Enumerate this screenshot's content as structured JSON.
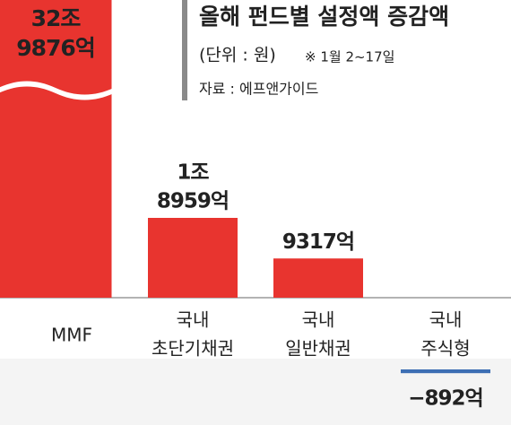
{
  "chart_data": {
    "type": "bar",
    "title": "올해 펀드별 설정액 증감액",
    "subtitle": "(단위 : 원)",
    "note": "※ 1월 2~17일",
    "source": "자료 : 에프앤가이드",
    "categories": [
      [
        "MMF"
      ],
      [
        "국내",
        "초단기채권"
      ],
      [
        "국내",
        "일반채권"
      ],
      [
        "국내",
        "주식형"
      ]
    ],
    "values": [
      329876,
      18959,
      9317,
      -892
    ],
    "value_labels": [
      [
        "32조",
        "9876억"
      ],
      [
        "1조",
        "8959억"
      ],
      [
        "9317억"
      ],
      [
        "−892억"
      ]
    ],
    "color": "#e8342f",
    "negative_color": "#3d6fb4"
  }
}
